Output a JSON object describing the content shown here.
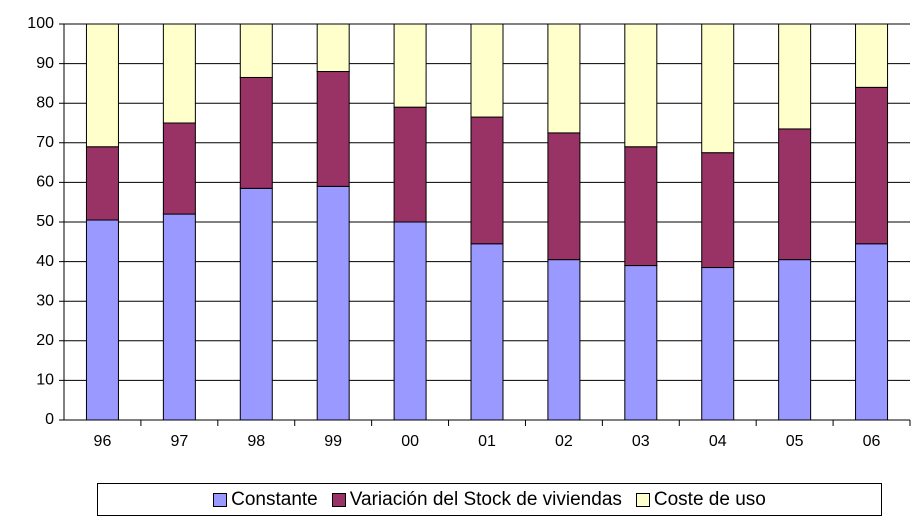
{
  "chart_data": {
    "type": "stacked-bar",
    "categories": [
      "96",
      "97",
      "98",
      "99",
      "00",
      "01",
      "02",
      "03",
      "04",
      "05",
      "06"
    ],
    "series": [
      {
        "name": "Constante",
        "color": "#9999ff",
        "values": [
          50.5,
          52,
          58.5,
          59,
          50,
          44.5,
          40.5,
          39,
          38.5,
          40.5,
          44.5
        ]
      },
      {
        "name": "Variación del Stock de viviendas",
        "color": "#993366",
        "values": [
          18.5,
          23,
          28,
          29,
          29,
          32,
          32,
          30,
          29,
          33,
          39.5
        ]
      },
      {
        "name": "Coste de uso",
        "color": "#ffffcc",
        "values": [
          31,
          25,
          13.5,
          12,
          21,
          23.5,
          27.5,
          31,
          32.5,
          26.5,
          16
        ]
      }
    ],
    "ylim": [
      0,
      100
    ],
    "yticks": [
      0,
      10,
      20,
      30,
      40,
      50,
      60,
      70,
      80,
      90,
      100
    ],
    "grid": true,
    "legend": "bottom"
  }
}
